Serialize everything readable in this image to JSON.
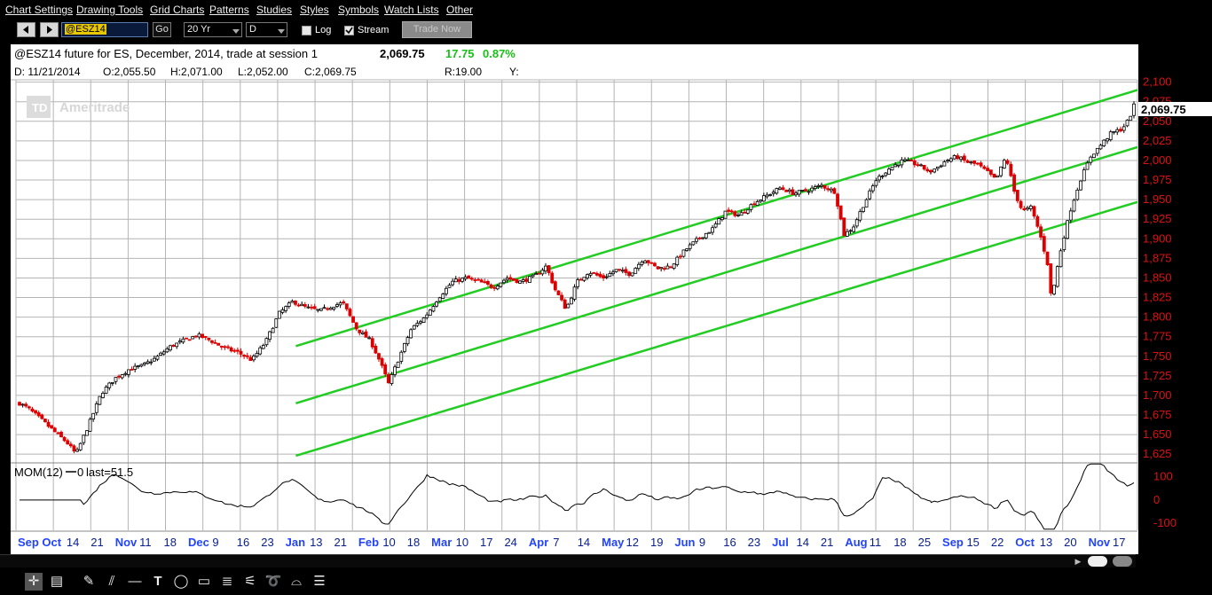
{
  "menu": [
    "Chart Settings",
    "Drawing Tools",
    "Grid Charts",
    "Patterns",
    "Studies",
    "Styles",
    "Symbols",
    "Watch Lists",
    "Other"
  ],
  "toolbar": {
    "back_icon": "left-triangle-icon",
    "forward_icon": "right-triangle-icon",
    "symbol_value": "@ESZ14",
    "go_label": "Go",
    "period_value": "20 Yr",
    "interval_value": "D",
    "log_label": "Log",
    "log_checked": false,
    "stream_label": "Stream",
    "stream_checked": true,
    "trade_now_label": "Trade Now"
  },
  "header": {
    "title": "@ESZ14 future for ES, December, 2014, trade at session 1",
    "last_price": "2,069.75",
    "change": "17.75",
    "change_pct": "0.87%",
    "date_info": "D:  11/21/2014",
    "open": "O:2,055.50",
    "high": "H:2,071.00",
    "low": "L:2,052.00",
    "close": "C:2,069.75",
    "range": "R:19.00",
    "y_label": "Y:"
  },
  "watermark": "Ameritrade",
  "current_price_tag": "2,069.75",
  "colors": {
    "up": "#000000",
    "down": "#dd0000",
    "channel": "#22cc22",
    "axis_text": "#dd1111",
    "date_text": "#2244ff",
    "grid": "#b4b4b4"
  },
  "chart_data": {
    "type": "candlestick",
    "y_ticks": [
      "2,100",
      "2,075",
      "2,050",
      "2,025",
      "2,000",
      "1,975",
      "1,950",
      "1,925",
      "1,900",
      "1,875",
      "1,850",
      "1,825",
      "1,800",
      "1,775",
      "1,750",
      "1,725",
      "1,700",
      "1,675",
      "1,650",
      "1,625"
    ],
    "ylim": [
      1615,
      2103
    ],
    "x_labels": [
      {
        "text": "Sep",
        "major": true
      },
      {
        "text": "Oct",
        "major": true
      },
      {
        "text": "14",
        "major": false
      },
      {
        "text": "21",
        "major": false
      },
      {
        "text": "Nov",
        "major": true
      },
      {
        "text": "11",
        "major": false
      },
      {
        "text": "18",
        "major": false
      },
      {
        "text": "Dec",
        "major": true
      },
      {
        "text": "9",
        "major": false
      },
      {
        "text": "16",
        "major": false
      },
      {
        "text": "23",
        "major": false
      },
      {
        "text": "Jan",
        "major": true
      },
      {
        "text": "13",
        "major": false
      },
      {
        "text": "21",
        "major": false
      },
      {
        "text": "Feb",
        "major": true
      },
      {
        "text": "10",
        "major": false
      },
      {
        "text": "18",
        "major": false
      },
      {
        "text": "Mar",
        "major": true
      },
      {
        "text": "10",
        "major": false
      },
      {
        "text": "17",
        "major": false
      },
      {
        "text": "24",
        "major": false
      },
      {
        "text": "Apr",
        "major": true
      },
      {
        "text": "7",
        "major": false
      },
      {
        "text": "14",
        "major": false
      },
      {
        "text": "May",
        "major": true
      },
      {
        "text": "12",
        "major": false
      },
      {
        "text": "19",
        "major": false
      },
      {
        "text": "Jun",
        "major": true
      },
      {
        "text": "9",
        "major": false
      },
      {
        "text": "16",
        "major": false
      },
      {
        "text": "23",
        "major": false
      },
      {
        "text": "Jul",
        "major": true
      },
      {
        "text": "14",
        "major": false
      },
      {
        "text": "21",
        "major": false
      },
      {
        "text": "Aug",
        "major": true
      },
      {
        "text": "11",
        "major": false
      },
      {
        "text": "18",
        "major": false
      },
      {
        "text": "25",
        "major": false
      },
      {
        "text": "Sep",
        "major": true
      },
      {
        "text": "15",
        "major": false
      },
      {
        "text": "22",
        "major": false
      },
      {
        "text": "Oct",
        "major": true
      },
      {
        "text": "13",
        "major": false
      },
      {
        "text": "20",
        "major": false
      },
      {
        "text": "Nov",
        "major": true
      },
      {
        "text": "17",
        "major": false
      }
    ],
    "channel_lines": [
      {
        "name": "upper",
        "x": [
          0.21,
          1.0
        ],
        "y": [
          1763,
          2090
        ]
      },
      {
        "name": "middle",
        "x": [
          0.21,
          1.0
        ],
        "y": [
          1690,
          2017
        ]
      },
      {
        "name": "lower",
        "x": [
          0.21,
          1.0
        ],
        "y": [
          1623,
          1947
        ]
      }
    ],
    "price_path": [
      {
        "t": 0.0,
        "p": 1690
      },
      {
        "t": 0.01,
        "p": 1683
      },
      {
        "t": 0.025,
        "p": 1668
      },
      {
        "t": 0.04,
        "p": 1652
      },
      {
        "t": 0.052,
        "p": 1640
      },
      {
        "t": 0.062,
        "p": 1625
      },
      {
        "t": 0.075,
        "p": 1660
      },
      {
        "t": 0.09,
        "p": 1703
      },
      {
        "t": 0.105,
        "p": 1722
      },
      {
        "t": 0.12,
        "p": 1733
      },
      {
        "t": 0.135,
        "p": 1738
      },
      {
        "t": 0.15,
        "p": 1748
      },
      {
        "t": 0.165,
        "p": 1762
      },
      {
        "t": 0.18,
        "p": 1770
      },
      {
        "t": 0.195,
        "p": 1777
      },
      {
        "t": 0.21,
        "p": 1770
      },
      {
        "t": 0.225,
        "p": 1760
      },
      {
        "t": 0.24,
        "p": 1755
      },
      {
        "t": 0.255,
        "p": 1745
      },
      {
        "t": 0.27,
        "p": 1768
      },
      {
        "t": 0.285,
        "p": 1805
      },
      {
        "t": 0.3,
        "p": 1820
      },
      {
        "t": 0.315,
        "p": 1812
      },
      {
        "t": 0.33,
        "p": 1808
      },
      {
        "t": 0.345,
        "p": 1815
      },
      {
        "t": 0.355,
        "p": 1818
      },
      {
        "t": 0.37,
        "p": 1785
      },
      {
        "t": 0.385,
        "p": 1770
      },
      {
        "t": 0.395,
        "p": 1745
      },
      {
        "t": 0.405,
        "p": 1715
      },
      {
        "t": 0.418,
        "p": 1752
      },
      {
        "t": 0.43,
        "p": 1785
      },
      {
        "t": 0.445,
        "p": 1800
      },
      {
        "t": 0.46,
        "p": 1825
      },
      {
        "t": 0.475,
        "p": 1845
      },
      {
        "t": 0.49,
        "p": 1850
      },
      {
        "t": 0.505,
        "p": 1845
      },
      {
        "t": 0.52,
        "p": 1838
      },
      {
        "t": 0.535,
        "p": 1850
      },
      {
        "t": 0.55,
        "p": 1845
      },
      {
        "t": 0.565,
        "p": 1852
      },
      {
        "t": 0.578,
        "p": 1865
      },
      {
        "t": 0.588,
        "p": 1835
      },
      {
        "t": 0.6,
        "p": 1810
      },
      {
        "t": 0.612,
        "p": 1845
      },
      {
        "t": 0.625,
        "p": 1858
      },
      {
        "t": 0.64,
        "p": 1850
      },
      {
        "t": 0.655,
        "p": 1860
      },
      {
        "t": 0.67,
        "p": 1855
      },
      {
        "t": 0.685,
        "p": 1875
      },
      {
        "t": 0.7,
        "p": 1862
      },
      {
        "t": 0.715,
        "p": 1865
      },
      {
        "t": 0.73,
        "p": 1885
      },
      {
        "t": 0.745,
        "p": 1900
      },
      {
        "t": 0.76,
        "p": 1912
      },
      {
        "t": 0.775,
        "p": 1935
      },
      {
        "t": 0.79,
        "p": 1930
      },
      {
        "t": 0.805,
        "p": 1945
      },
      {
        "t": 0.82,
        "p": 1955
      },
      {
        "t": 0.835,
        "p": 1965
      },
      {
        "t": 0.85,
        "p": 1958
      },
      {
        "t": 0.865,
        "p": 1962
      },
      {
        "t": 0.88,
        "p": 1968
      },
      {
        "t": 0.895,
        "p": 1960
      },
      {
        "t": 0.905,
        "p": 1905
      },
      {
        "t": 0.915,
        "p": 1915
      },
      {
        "t": 0.925,
        "p": 1940
      },
      {
        "t": 0.94,
        "p": 1975
      },
      {
        "t": 0.955,
        "p": 1990
      },
      {
        "t": 0.97,
        "p": 2000
      },
      {
        "t": 0.985,
        "p": 1995
      },
      {
        "t": 1.0,
        "p": 1985
      }
    ],
    "late_path": [
      {
        "t": 0.0,
        "p": 1985
      },
      {
        "t": 0.04,
        "p": 1990
      },
      {
        "t": 0.09,
        "p": 2000
      },
      {
        "t": 0.14,
        "p": 2005
      },
      {
        "t": 0.19,
        "p": 1998
      },
      {
        "t": 0.24,
        "p": 1995
      },
      {
        "t": 0.29,
        "p": 1985
      },
      {
        "t": 0.33,
        "p": 1975
      },
      {
        "t": 0.38,
        "p": 2005
      },
      {
        "t": 0.42,
        "p": 1960
      },
      {
        "t": 0.46,
        "p": 1935
      },
      {
        "t": 0.5,
        "p": 1940
      },
      {
        "t": 0.54,
        "p": 1910
      },
      {
        "t": 0.58,
        "p": 1870
      },
      {
        "t": 0.6,
        "p": 1822
      },
      {
        "t": 0.64,
        "p": 1880
      },
      {
        "t": 0.69,
        "p": 1935
      },
      {
        "t": 0.74,
        "p": 1975
      },
      {
        "t": 0.79,
        "p": 2005
      },
      {
        "t": 0.84,
        "p": 2020
      },
      {
        "t": 0.89,
        "p": 2035
      },
      {
        "t": 0.94,
        "p": 2040
      },
      {
        "t": 0.975,
        "p": 2052
      },
      {
        "t": 1.0,
        "p": 2069.75
      }
    ],
    "momentum": {
      "label": "MOM(12)",
      "legend_marker": "0",
      "last_label": "last=51.5",
      "y_ticks": [
        "100",
        "0",
        "-100"
      ],
      "ylim": [
        -130,
        160
      ]
    }
  }
}
